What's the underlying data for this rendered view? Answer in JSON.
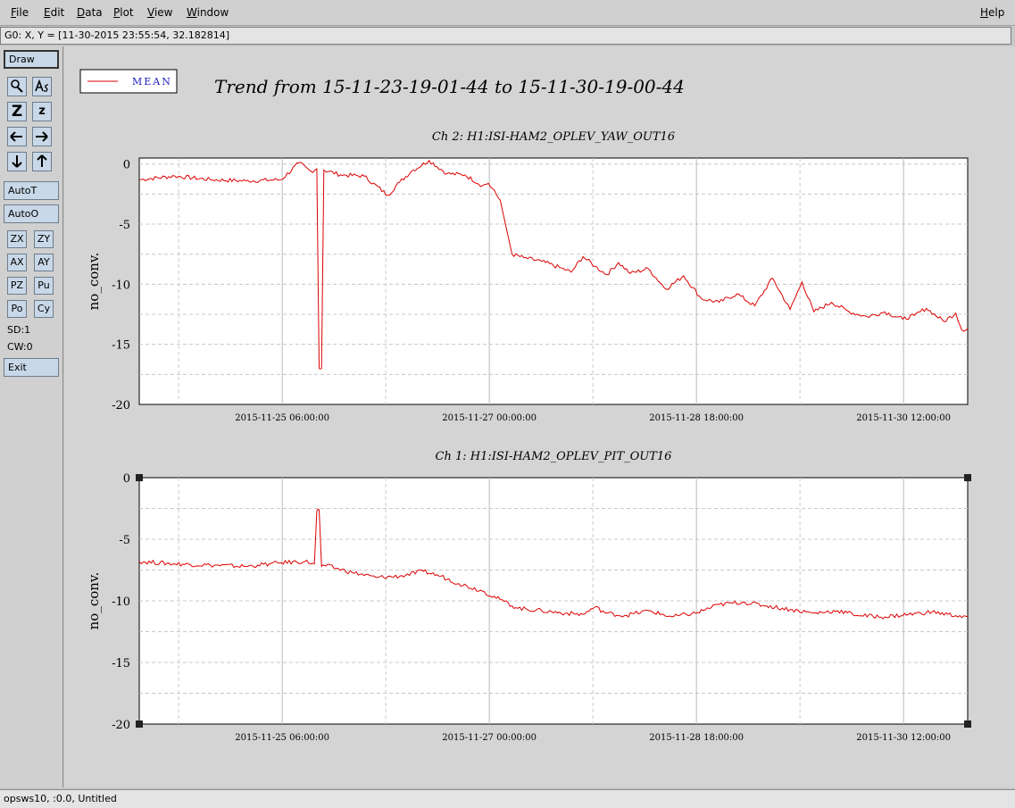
{
  "menu": {
    "file": "File",
    "edit": "Edit",
    "data": "Data",
    "plot": "Plot",
    "view": "View",
    "window": "Window",
    "help": "Help"
  },
  "coord_readout": "G0: X, Y = [11-30-2015 23:55:54, 32.182814]",
  "toolbar": {
    "draw": "Draw",
    "autot": "AutoT",
    "autoo": "AutoO",
    "zx": "ZX",
    "zy": "ZY",
    "ax": "AX",
    "ay": "AY",
    "pz": "PZ",
    "pu": "Pu",
    "po": "Po",
    "cy": "Cy",
    "z_big": "Z",
    "z_small": "z",
    "sd": "SD:1",
    "cw": "CW:0",
    "exit": "Exit"
  },
  "icons": {
    "zoom": "magnifier-icon",
    "annotate": "text-tool-icon",
    "left": "arrow-left-icon",
    "right": "arrow-right-icon",
    "down": "arrow-down-icon",
    "up": "arrow-up-icon"
  },
  "legend": {
    "label": "MEAN",
    "color": "#dd0000"
  },
  "main_title": "Trend from 15-11-23-19-01-44 to 15-11-30-19-00-44",
  "status_text": "opsws10, :0.0, Untitled",
  "chart_data": [
    {
      "type": "line",
      "title": "Ch 2: H1:ISI-HAM2_OPLEV_YAW_OUT16",
      "ylabel": "no_conv.",
      "xlabel": "",
      "ylim": [
        -20,
        0.5
      ],
      "y_ticks": [
        0,
        -5,
        -10,
        -15,
        -20
      ],
      "x_tick_labels": [
        "2015-11-25 06:00:00",
        "2015-11-27 00:00:00",
        "2015-11-28 18:00:00",
        "2015-11-30 12:00:00"
      ],
      "x_days_range": [
        0,
        7
      ],
      "x_tick_days": [
        1.208,
        2.958,
        4.708,
        6.458
      ],
      "grid": true,
      "color": "#dd0000",
      "series": [
        {
          "name": "MEAN",
          "x": [
            0,
            0.3,
            0.6,
            0.9,
            1.2,
            1.35,
            1.45,
            1.5,
            1.52,
            1.54,
            1.56,
            1.7,
            1.9,
            2.1,
            2.2,
            2.3,
            2.45,
            2.6,
            2.75,
            2.9,
            2.95,
            3.05,
            3.15,
            3.25,
            3.4,
            3.55,
            3.65,
            3.75,
            3.85,
            3.95,
            4.05,
            4.15,
            4.3,
            4.45,
            4.6,
            4.75,
            4.9,
            5.05,
            5.2,
            5.35,
            5.5,
            5.6,
            5.7,
            5.85,
            6.0,
            6.15,
            6.3,
            6.45,
            6.55,
            6.65,
            6.8,
            6.9,
            6.95,
            7.0
          ],
          "y": [
            -1.3,
            -1.0,
            -1.3,
            -1.4,
            -1.3,
            0.1,
            -0.6,
            -0.4,
            -17.0,
            -17.0,
            -0.5,
            -0.9,
            -1.0,
            -2.6,
            -1.5,
            -0.6,
            0.3,
            -0.8,
            -0.9,
            -1.8,
            -1.6,
            -3.0,
            -7.5,
            -7.8,
            -8.1,
            -8.6,
            -9.0,
            -7.7,
            -8.5,
            -9.2,
            -8.2,
            -9.1,
            -8.7,
            -10.4,
            -9.3,
            -11.2,
            -11.5,
            -10.8,
            -11.8,
            -9.5,
            -12.1,
            -9.8,
            -12.3,
            -11.5,
            -12.3,
            -12.7,
            -12.3,
            -12.9,
            -12.6,
            -12.0,
            -13.1,
            -12.4,
            -13.8,
            -13.7
          ]
        }
      ]
    },
    {
      "type": "line",
      "title": "Ch 1: H1:ISI-HAM2_OPLEV_PIT_OUT16",
      "ylabel": "no_conv.",
      "xlabel": "",
      "ylim": [
        -20,
        0
      ],
      "y_ticks": [
        0,
        -5,
        -10,
        -15,
        -20
      ],
      "x_tick_labels": [
        "2015-11-25 06:00:00",
        "2015-11-27 00:00:00",
        "2015-11-28 18:00:00",
        "2015-11-30 12:00:00"
      ],
      "x_days_range": [
        0,
        7
      ],
      "x_tick_days": [
        1.208,
        2.958,
        4.708,
        6.458
      ],
      "grid": true,
      "color": "#dd0000",
      "series": [
        {
          "name": "MEAN",
          "x": [
            0,
            0.3,
            0.6,
            0.9,
            1.0,
            1.1,
            1.2,
            1.4,
            1.48,
            1.5,
            1.52,
            1.54,
            1.56,
            1.8,
            2.0,
            2.2,
            2.4,
            2.55,
            2.7,
            2.9,
            3.05,
            3.2,
            3.4,
            3.6,
            3.75,
            3.85,
            3.95,
            4.1,
            4.3,
            4.5,
            4.7,
            4.9,
            5.1,
            5.3,
            5.5,
            5.7,
            5.9,
            6.1,
            6.3,
            6.5,
            6.7,
            6.9,
            7.0
          ],
          "y": [
            -6.8,
            -7.0,
            -7.1,
            -7.2,
            -7.1,
            -7.0,
            -6.9,
            -6.8,
            -7.0,
            -2.7,
            -2.6,
            -7.2,
            -7.1,
            -7.7,
            -8.1,
            -8.0,
            -7.6,
            -8.0,
            -8.6,
            -9.2,
            -9.9,
            -10.6,
            -10.8,
            -11.0,
            -11.1,
            -10.5,
            -11.0,
            -11.2,
            -10.8,
            -11.3,
            -11.0,
            -10.3,
            -10.1,
            -10.4,
            -10.7,
            -11.0,
            -10.8,
            -11.2,
            -11.3,
            -11.1,
            -10.9,
            -11.2,
            -11.3
          ]
        }
      ]
    }
  ]
}
